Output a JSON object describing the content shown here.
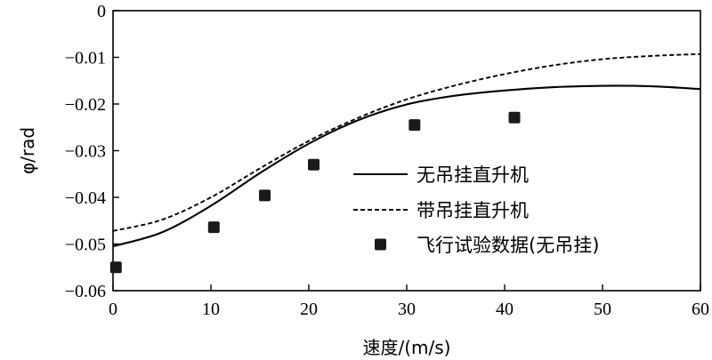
{
  "chart_data": {
    "type": "line",
    "xlabel": "速度/(m/s)",
    "ylabel": "φ/rad",
    "xlim": [
      0,
      60
    ],
    "ylim": [
      -0.06,
      0
    ],
    "x_ticks": [
      0,
      10,
      20,
      30,
      40,
      50,
      60
    ],
    "y_ticks": [
      0,
      -0.01,
      -0.02,
      -0.03,
      -0.04,
      -0.05,
      -0.06
    ],
    "x_tick_labels": [
      "0",
      "10",
      "20",
      "30",
      "40",
      "50",
      "60"
    ],
    "y_tick_labels": [
      "0",
      "−0.01",
      "−0.02",
      "−0.03",
      "−0.04",
      "−0.05",
      "−0.06"
    ],
    "grid": false,
    "legend_position": "right",
    "series": [
      {
        "name": "无吊挂直升机",
        "style": "solid",
        "color": "#000000",
        "x": [
          0,
          5,
          10,
          15,
          20,
          25,
          30,
          35,
          40,
          45,
          50,
          55,
          60
        ],
        "y": [
          -0.0505,
          -0.0475,
          -0.0418,
          -0.0348,
          -0.0285,
          -0.0235,
          -0.0201,
          -0.0182,
          -0.0171,
          -0.0164,
          -0.0161,
          -0.0162,
          -0.0168
        ]
      },
      {
        "name": "带吊挂直升机",
        "style": "dashed",
        "color": "#000000",
        "x": [
          0,
          5,
          10,
          15,
          20,
          25,
          30,
          35,
          40,
          45,
          50,
          55,
          60
        ],
        "y": [
          -0.0472,
          -0.0448,
          -0.04,
          -0.0338,
          -0.0279,
          -0.023,
          -0.019,
          -0.016,
          -0.0136,
          -0.0117,
          -0.0104,
          -0.0097,
          -0.0093
        ]
      },
      {
        "name": "飞行试验数据(无吊挂)",
        "style": "markers",
        "marker": "filled-square",
        "color": "#1a1a1a",
        "x": [
          0.3,
          10.3,
          15.5,
          20.5,
          30.8,
          41.0
        ],
        "y": [
          -0.055,
          -0.0464,
          -0.0396,
          -0.033,
          -0.0245,
          -0.0229
        ]
      }
    ]
  }
}
